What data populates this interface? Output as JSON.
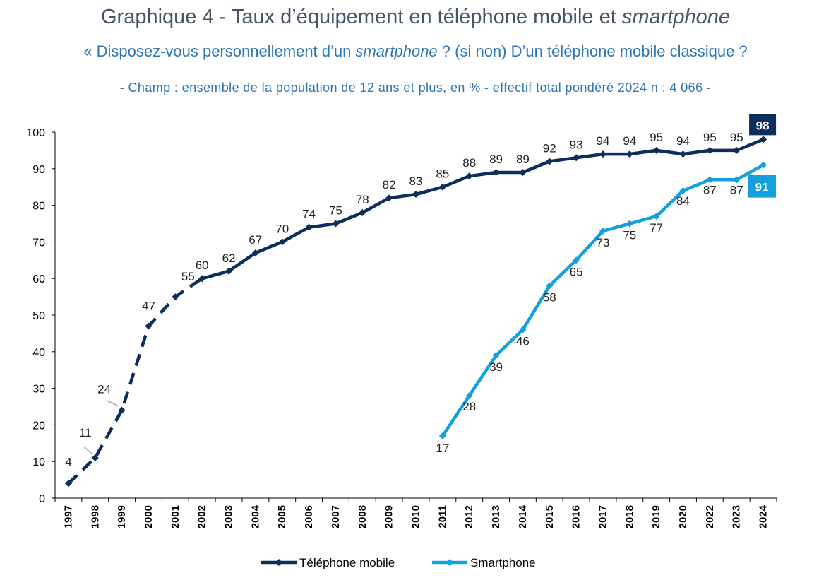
{
  "header": {
    "title_main": "Graphique 4 - Taux d’équipement en téléphone mobile et ",
    "title_italic": "smartphone",
    "subtitle_pre": "« Disposez-vous personnellement d’un ",
    "subtitle_italic": "smartphone",
    "subtitle_post": " ? (si non) D’un téléphone mobile classique ?",
    "note": "- Champ : ensemble de la population de 12 ans et plus, en % - effectif total pondéré 2024 n : 4 066 -"
  },
  "colors": {
    "mobile": "#0d2d5a",
    "smartphone": "#12a1de",
    "axis": "#000000",
    "leader": "#a6a6a6"
  },
  "chart_data": {
    "type": "line",
    "title": "Graphique 4 - Taux d’équipement en téléphone mobile et smartphone",
    "categories": [
      "1997",
      "1998",
      "1999",
      "2000",
      "2001",
      "2002",
      "2003",
      "2004",
      "2005",
      "2006",
      "2007",
      "2008",
      "2009",
      "2010",
      "2011",
      "2012",
      "2013",
      "2014",
      "2015",
      "2016",
      "2017",
      "2018",
      "2019",
      "2020",
      "2022",
      "2023",
      "2024"
    ],
    "yticks": [
      "0",
      "10",
      "20",
      "30",
      "40",
      "50",
      "60",
      "70",
      "80",
      "90",
      "100"
    ],
    "ylim": [
      0,
      100
    ],
    "grid": false,
    "legend_position": "bottom",
    "series": [
      {
        "name": "Téléphone mobile",
        "values": [
          4,
          11,
          24,
          47,
          55,
          60,
          62,
          67,
          70,
          74,
          75,
          78,
          82,
          83,
          85,
          88,
          89,
          89,
          92,
          93,
          94,
          94,
          95,
          94,
          95,
          95,
          98
        ],
        "labels": [
          "4",
          "11",
          "24",
          "47",
          "55",
          "60",
          "62",
          "67",
          "70",
          "74",
          "75",
          "78",
          "82",
          "83",
          "85",
          "88",
          "89",
          "89",
          "92",
          "93",
          "94",
          "94",
          "95",
          "94",
          "95",
          "95",
          "98"
        ],
        "dashed_until": "2002"
      },
      {
        "name": "Smartphone",
        "values": [
          null,
          null,
          null,
          null,
          null,
          null,
          null,
          null,
          null,
          null,
          null,
          null,
          null,
          null,
          17,
          28,
          39,
          46,
          58,
          65,
          73,
          75,
          77,
          84,
          87,
          87,
          91
        ],
        "labels": [
          "",
          "",
          "",
          "",
          "",
          "",
          "",
          "",
          "",
          "",
          "",
          "",
          "",
          "",
          "17",
          "28",
          "39",
          "46",
          "58",
          "65",
          "73",
          "75",
          "77",
          "84",
          "87",
          "87",
          "91"
        ]
      }
    ]
  }
}
